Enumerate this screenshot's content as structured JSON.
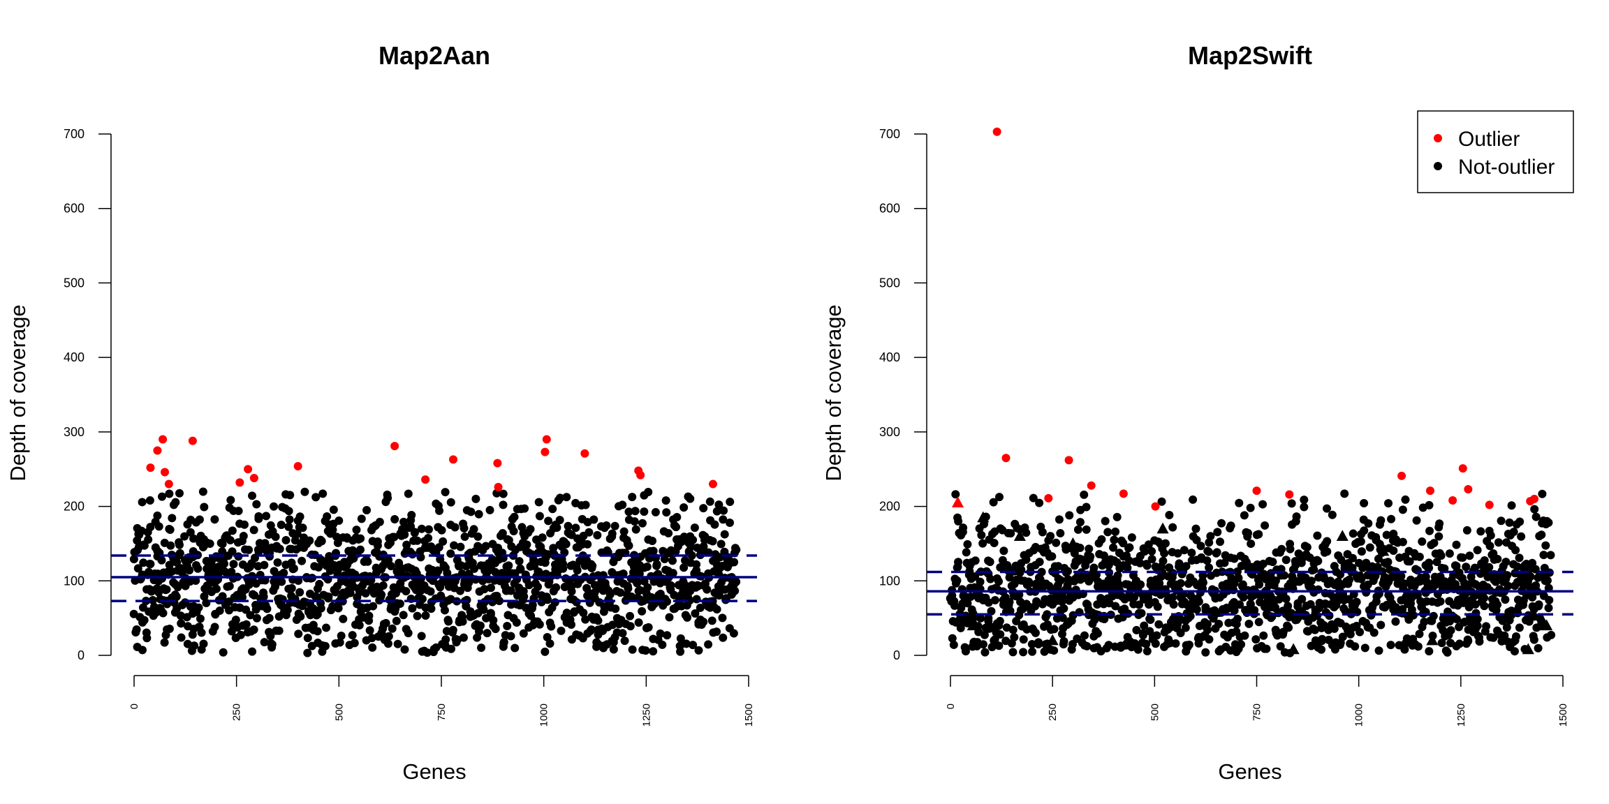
{
  "chart_data": [
    {
      "type": "scatter",
      "title": "Map2Aan",
      "xlabel": "Genes",
      "ylabel": "Depth of coverage",
      "xlim": [
        0,
        1500
      ],
      "ylim": [
        0,
        700
      ],
      "xticks": [
        "0",
        "250",
        "500",
        "750",
        "1000",
        "1250",
        "1500"
      ],
      "yticks": [
        "0",
        "100",
        "200",
        "300",
        "400",
        "500",
        "600",
        "700"
      ],
      "reference_lines": {
        "mean": 105,
        "lower": 73,
        "upper": 134
      },
      "series": [
        {
          "name": "Outlier",
          "color": "#ff0000",
          "points": [
            [
              40,
              252
            ],
            [
              57,
              275
            ],
            [
              70,
              290
            ],
            [
              75,
              246
            ],
            [
              85,
              230
            ],
            [
              143,
              288
            ],
            [
              258,
              232
            ],
            [
              278,
              250
            ],
            [
              293,
              238
            ],
            [
              400,
              254
            ],
            [
              636,
              281
            ],
            [
              711,
              236
            ],
            [
              779,
              263
            ],
            [
              887,
              258
            ],
            [
              889,
              226
            ],
            [
              1003,
              273
            ],
            [
              1007,
              290
            ],
            [
              1100,
              271
            ],
            [
              1231,
              248
            ],
            [
              1236,
              242
            ],
            [
              1413,
              230
            ]
          ]
        },
        {
          "name": "Not-outlier",
          "color": "#000000",
          "n_points": 1450,
          "seed": 11,
          "shape": "circle"
        }
      ]
    },
    {
      "type": "scatter",
      "title": "Map2Swift",
      "xlabel": "Genes",
      "ylabel": "Depth of coverage",
      "xlim": [
        0,
        1500
      ],
      "ylim": [
        0,
        700
      ],
      "xticks": [
        "0",
        "250",
        "500",
        "750",
        "1000",
        "1250",
        "1500"
      ],
      "yticks": [
        "0",
        "100",
        "200",
        "300",
        "400",
        "500",
        "600",
        "700"
      ],
      "reference_lines": {
        "mean": 86,
        "lower": 55,
        "upper": 112
      },
      "legend": {
        "position": "top-right",
        "entries": [
          {
            "label": "Outlier",
            "color": "#ff0000"
          },
          {
            "label": "Not-outlier",
            "color": "#000000"
          }
        ]
      },
      "series": [
        {
          "name": "Outlier",
          "color": "#ff0000",
          "points": [
            [
              114,
              703
            ],
            [
              136,
              265
            ],
            [
              240,
              211
            ],
            [
              290,
              262
            ],
            [
              345,
              228
            ],
            [
              424,
              217
            ],
            [
              502,
              200
            ],
            [
              750,
              221
            ],
            [
              830,
              216
            ],
            [
              1105,
              241
            ],
            [
              1175,
              221
            ],
            [
              1230,
              208
            ],
            [
              1255,
              251
            ],
            [
              1268,
              223
            ],
            [
              1320,
              202
            ],
            [
              1420,
              207
            ],
            [
              1430,
              210
            ]
          ],
          "triangles": [
            [
              18,
              205
            ]
          ]
        },
        {
          "name": "Not-outlier",
          "color": "#000000",
          "n_points": 1450,
          "seed": 29,
          "shape": "circle",
          "triangles": [
            [
              80,
              185
            ],
            [
              170,
              160
            ],
            [
              30,
              45
            ],
            [
              250,
              20
            ],
            [
              300,
              150
            ],
            [
              520,
              170
            ],
            [
              960,
              160
            ],
            [
              1060,
              140
            ],
            [
              840,
              8
            ],
            [
              1415,
              8
            ],
            [
              1460,
              40
            ],
            [
              55,
              40
            ],
            [
              670,
              60
            ],
            [
              1180,
              20
            ],
            [
              980,
              120
            ]
          ]
        }
      ]
    }
  ]
}
